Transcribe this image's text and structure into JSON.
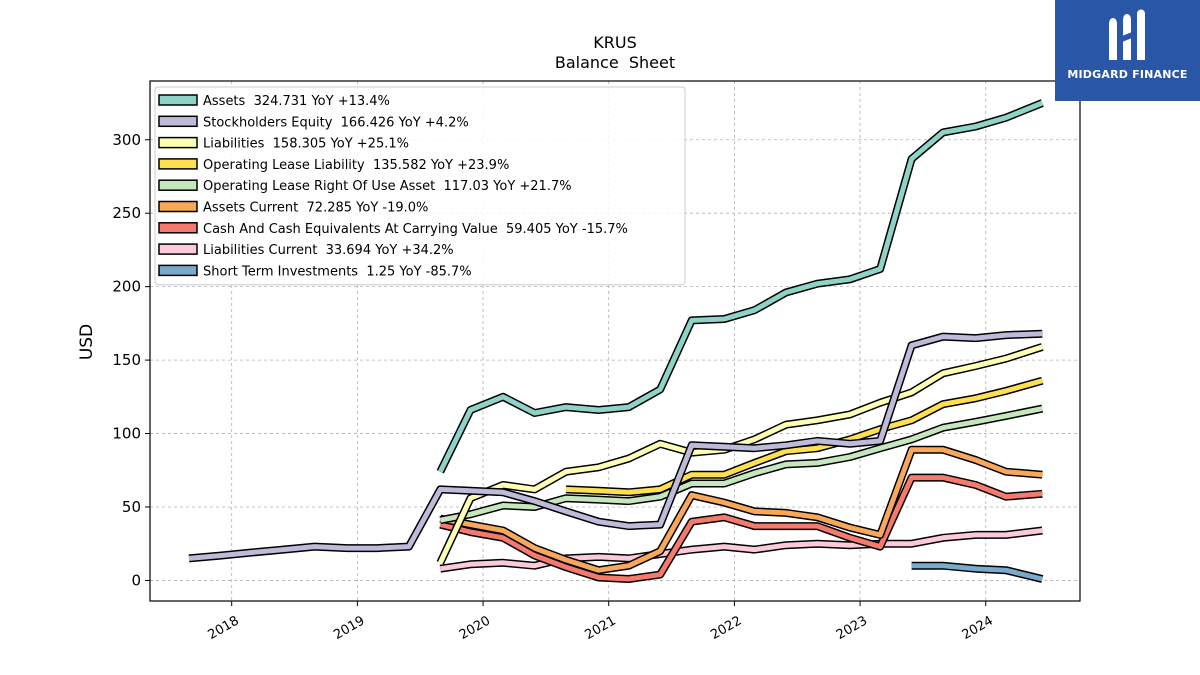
{
  "chart_data": {
    "type": "line",
    "title": "KRUS",
    "subtitle": "Balance  Sheet",
    "ylabel": "USD",
    "ylim": [
      -14,
      340
    ],
    "yticks": [
      0,
      50,
      100,
      150,
      200,
      250,
      300
    ],
    "xlim": [
      2017.35,
      2024.75
    ],
    "xticks": [
      {
        "value": 2018,
        "label": "2018"
      },
      {
        "value": 2019,
        "label": "2019"
      },
      {
        "value": 2020,
        "label": "2020"
      },
      {
        "value": 2021,
        "label": "2021"
      },
      {
        "value": 2022,
        "label": "2022"
      },
      {
        "value": 2023,
        "label": "2023"
      },
      {
        "value": 2024,
        "label": "2024"
      }
    ],
    "grid": true,
    "legend_position": "top-left",
    "series": [
      {
        "name": "Assets",
        "legend": "Assets  324.731 YoY +13.4%",
        "color": "#8dd3c7",
        "points": [
          [
            2019.66,
            74
          ],
          [
            2019.9,
            116
          ],
          [
            2020.16,
            125
          ],
          [
            2020.41,
            114
          ],
          [
            2020.66,
            118
          ],
          [
            2020.92,
            116
          ],
          [
            2021.16,
            118
          ],
          [
            2021.41,
            130
          ],
          [
            2021.66,
            177
          ],
          [
            2021.92,
            178
          ],
          [
            2022.16,
            184
          ],
          [
            2022.41,
            196
          ],
          [
            2022.66,
            202
          ],
          [
            2022.92,
            205
          ],
          [
            2023.16,
            212
          ],
          [
            2023.41,
            287
          ],
          [
            2023.66,
            305
          ],
          [
            2023.92,
            309
          ],
          [
            2024.16,
            315
          ],
          [
            2024.45,
            325
          ]
        ]
      },
      {
        "name": "Stockholders Equity",
        "legend": "Stockholders Equity  166.426 YoY +4.2%",
        "color": "#bebada",
        "points": [
          [
            2017.66,
            15
          ],
          [
            2017.92,
            17
          ],
          [
            2018.16,
            19
          ],
          [
            2018.41,
            21
          ],
          [
            2018.66,
            23
          ],
          [
            2018.92,
            22
          ],
          [
            2019.16,
            22
          ],
          [
            2019.41,
            23
          ],
          [
            2019.66,
            62
          ],
          [
            2019.9,
            61
          ],
          [
            2020.16,
            60
          ],
          [
            2020.41,
            54
          ],
          [
            2020.66,
            47
          ],
          [
            2020.92,
            40
          ],
          [
            2021.16,
            37
          ],
          [
            2021.41,
            38
          ],
          [
            2021.66,
            92
          ],
          [
            2021.92,
            91
          ],
          [
            2022.16,
            90
          ],
          [
            2022.41,
            92
          ],
          [
            2022.66,
            95
          ],
          [
            2022.92,
            93
          ],
          [
            2023.16,
            95
          ],
          [
            2023.41,
            160
          ],
          [
            2023.66,
            166
          ],
          [
            2023.92,
            165
          ],
          [
            2024.16,
            167
          ],
          [
            2024.45,
            168
          ]
        ]
      },
      {
        "name": "Liabilities",
        "legend": "Liabilities  158.305 YoY +25.1%",
        "color": "#ffffb3",
        "points": [
          [
            2019.66,
            12
          ],
          [
            2019.9,
            56
          ],
          [
            2020.16,
            65
          ],
          [
            2020.41,
            62
          ],
          [
            2020.66,
            74
          ],
          [
            2020.92,
            77
          ],
          [
            2021.16,
            83
          ],
          [
            2021.41,
            93
          ],
          [
            2021.66,
            87
          ],
          [
            2021.92,
            89
          ],
          [
            2022.16,
            96
          ],
          [
            2022.41,
            106
          ],
          [
            2022.66,
            109
          ],
          [
            2022.92,
            113
          ],
          [
            2023.16,
            121
          ],
          [
            2023.41,
            128
          ],
          [
            2023.66,
            141
          ],
          [
            2023.92,
            146
          ],
          [
            2024.16,
            151
          ],
          [
            2024.45,
            159
          ]
        ]
      },
      {
        "name": "Operating Lease Liability",
        "legend": "Operating Lease Liability  135.582 YoY +23.9%",
        "color": "#fce04f",
        "points": [
          [
            2020.66,
            62
          ],
          [
            2020.92,
            61
          ],
          [
            2021.16,
            60
          ],
          [
            2021.41,
            62
          ],
          [
            2021.66,
            72
          ],
          [
            2021.92,
            72
          ],
          [
            2022.16,
            80
          ],
          [
            2022.41,
            88
          ],
          [
            2022.66,
            90
          ],
          [
            2022.92,
            96
          ],
          [
            2023.16,
            103
          ],
          [
            2023.41,
            109
          ],
          [
            2023.66,
            120
          ],
          [
            2023.92,
            124
          ],
          [
            2024.16,
            129
          ],
          [
            2024.45,
            136
          ]
        ]
      },
      {
        "name": "Operating Lease Right Of Use Asset",
        "legend": "Operating Lease Right Of Use Asset  117.03 YoY +21.7%",
        "color": "#c6e6bd",
        "points": [
          [
            2019.66,
            41
          ],
          [
            2019.9,
            45
          ],
          [
            2020.16,
            51
          ],
          [
            2020.41,
            50
          ],
          [
            2020.66,
            56
          ],
          [
            2020.92,
            55
          ],
          [
            2021.16,
            54
          ],
          [
            2021.41,
            57
          ],
          [
            2021.66,
            66
          ],
          [
            2021.92,
            66
          ],
          [
            2022.16,
            73
          ],
          [
            2022.41,
            79
          ],
          [
            2022.66,
            80
          ],
          [
            2022.92,
            84
          ],
          [
            2023.16,
            90
          ],
          [
            2023.41,
            96
          ],
          [
            2023.66,
            104
          ],
          [
            2023.92,
            108
          ],
          [
            2024.16,
            112
          ],
          [
            2024.45,
            117
          ]
        ]
      },
      {
        "name": "Assets Current",
        "legend": "Assets Current  72.285 YoY -19.0%",
        "color": "#f8a85a",
        "points": [
          [
            2019.66,
            42
          ],
          [
            2019.9,
            38
          ],
          [
            2020.16,
            34
          ],
          [
            2020.41,
            22
          ],
          [
            2020.66,
            14
          ],
          [
            2020.92,
            7
          ],
          [
            2021.16,
            10
          ],
          [
            2021.41,
            20
          ],
          [
            2021.66,
            58
          ],
          [
            2021.92,
            53
          ],
          [
            2022.16,
            47
          ],
          [
            2022.41,
            46
          ],
          [
            2022.66,
            43
          ],
          [
            2022.92,
            36
          ],
          [
            2023.16,
            31
          ],
          [
            2023.41,
            89
          ],
          [
            2023.66,
            89
          ],
          [
            2023.92,
            82
          ],
          [
            2024.16,
            74
          ],
          [
            2024.45,
            72
          ]
        ]
      },
      {
        "name": "Cash And Cash Equivalents At Carrying Value",
        "legend": "Cash And Cash Equivalents At Carrying Value  59.405 YoY -15.7%",
        "color": "#f47a6e",
        "points": [
          [
            2019.66,
            38
          ],
          [
            2019.9,
            33
          ],
          [
            2020.16,
            29
          ],
          [
            2020.41,
            17
          ],
          [
            2020.66,
            9
          ],
          [
            2020.92,
            2
          ],
          [
            2021.16,
            1
          ],
          [
            2021.41,
            4
          ],
          [
            2021.66,
            40
          ],
          [
            2021.92,
            43
          ],
          [
            2022.16,
            37
          ],
          [
            2022.41,
            37
          ],
          [
            2022.66,
            37
          ],
          [
            2022.92,
            29
          ],
          [
            2023.16,
            23
          ],
          [
            2023.41,
            70
          ],
          [
            2023.66,
            70
          ],
          [
            2023.92,
            65
          ],
          [
            2024.16,
            57
          ],
          [
            2024.45,
            59
          ]
        ]
      },
      {
        "name": "Liabilities Current",
        "legend": "Liabilities Current  33.694 YoY +34.2%",
        "color": "#fbc8dc",
        "points": [
          [
            2019.66,
            8
          ],
          [
            2019.9,
            11
          ],
          [
            2020.16,
            12
          ],
          [
            2020.41,
            10
          ],
          [
            2020.66,
            15
          ],
          [
            2020.92,
            16
          ],
          [
            2021.16,
            15
          ],
          [
            2021.41,
            18
          ],
          [
            2021.66,
            21
          ],
          [
            2021.92,
            23
          ],
          [
            2022.16,
            21
          ],
          [
            2022.41,
            24
          ],
          [
            2022.66,
            25
          ],
          [
            2022.92,
            24
          ],
          [
            2023.16,
            25
          ],
          [
            2023.41,
            25
          ],
          [
            2023.66,
            29
          ],
          [
            2023.92,
            31
          ],
          [
            2024.16,
            31
          ],
          [
            2024.45,
            34
          ]
        ]
      },
      {
        "name": "Short Term Investments",
        "legend": "Short Term Investments  1.25 YoY -85.7%",
        "color": "#79a9cb",
        "points": [
          [
            2023.41,
            10
          ],
          [
            2023.66,
            10
          ],
          [
            2023.92,
            8
          ],
          [
            2024.16,
            7
          ],
          [
            2024.45,
            1
          ]
        ]
      }
    ]
  },
  "logo": {
    "name": "MIDGARD FINANCE"
  }
}
